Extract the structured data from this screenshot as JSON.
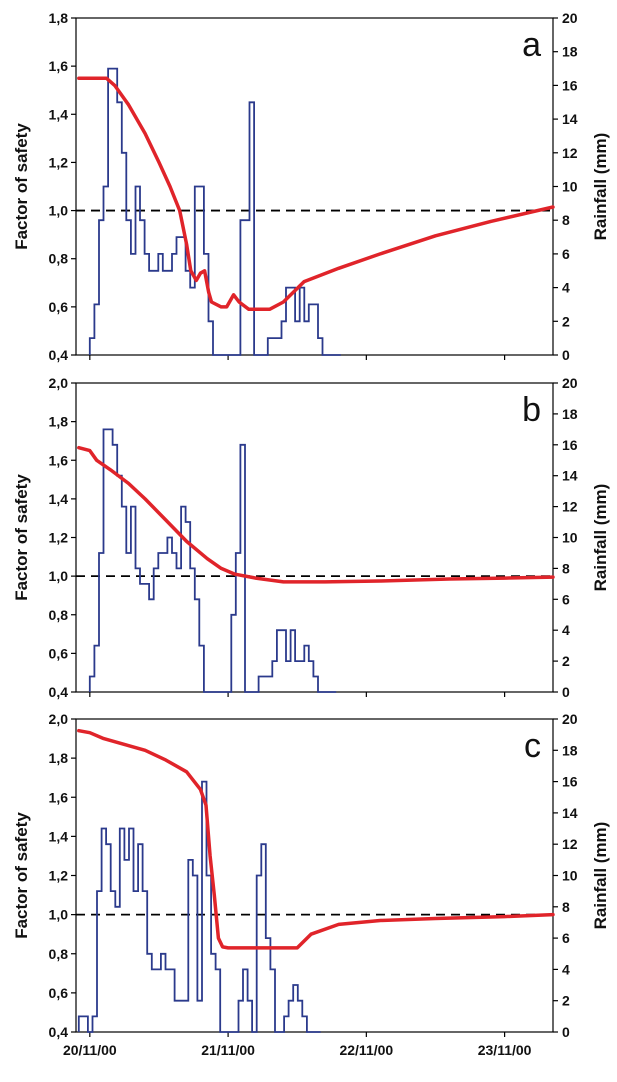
{
  "colors": {
    "factor_of_safety": "#e0242a",
    "rainfall": "#2b3a8c",
    "reference": "#000000"
  },
  "chart_data": [
    {
      "type": "line",
      "panel_label": "a",
      "ylabel": "Factor of safety",
      "y2label": "Rainfall (mm)",
      "ylim": [
        0.4,
        1.8
      ],
      "y2lim": [
        0,
        20
      ],
      "yticks": [
        "0,4",
        "0,6",
        "0,8",
        "1,0",
        "1,2",
        "1,4",
        "1,6",
        "1,8"
      ],
      "y2ticks": [
        "0",
        "2",
        "4",
        "6",
        "8",
        "10",
        "12",
        "14",
        "16",
        "18",
        "20"
      ],
      "xlim": [
        -0.1,
        3.35
      ],
      "xticks": [
        "20/11/00",
        "21/11/00",
        "22/11/00",
        "23/11/00"
      ],
      "show_xtick_labels": false,
      "reference_line": 1.0,
      "series": [
        {
          "name": "",
          "kind": "safety",
          "x": [
            -0.08,
            0.12,
            0.18,
            0.28,
            0.4,
            0.5,
            0.58,
            0.65,
            0.7,
            0.73,
            0.77,
            0.8,
            0.83,
            0.86,
            0.88,
            0.95,
            0.99,
            1.04,
            1.08,
            1.15,
            1.25,
            1.3,
            1.4,
            1.55,
            1.8,
            2.1,
            2.5,
            2.9,
            3.35
          ],
          "y": [
            1.55,
            1.55,
            1.52,
            1.44,
            1.32,
            1.2,
            1.1,
            1.0,
            0.86,
            0.75,
            0.71,
            0.74,
            0.75,
            0.66,
            0.62,
            0.6,
            0.6,
            0.65,
            0.62,
            0.59,
            0.59,
            0.59,
            0.62,
            0.705,
            0.76,
            0.82,
            0.895,
            0.955,
            1.015
          ]
        },
        {
          "name": "",
          "kind": "rainfall",
          "step": 0.033,
          "start": 0,
          "values": [
            1,
            3,
            8,
            10,
            17,
            17,
            15,
            12,
            8,
            6,
            10,
            8,
            6,
            5,
            5,
            6,
            5,
            5,
            6,
            7,
            7,
            5,
            4,
            10,
            10,
            6,
            2,
            0,
            0,
            0,
            0,
            0,
            0,
            8,
            8,
            15,
            0,
            0,
            0,
            1,
            1,
            1,
            2,
            4,
            4,
            2,
            4,
            2,
            3,
            3,
            1,
            0,
            0,
            0,
            0
          ]
        }
      ]
    },
    {
      "type": "line",
      "panel_label": "b",
      "ylabel": "Factor of safety",
      "y2label": "Rainfall (mm)",
      "ylim": [
        0.4,
        2.0
      ],
      "y2lim": [
        0,
        20
      ],
      "yticks": [
        "0,4",
        "0,6",
        "0,8",
        "1,0",
        "1,2",
        "1,4",
        "1,6",
        "1,8",
        "2,0"
      ],
      "y2ticks": [
        "0",
        "2",
        "4",
        "6",
        "8",
        "10",
        "12",
        "14",
        "16",
        "18",
        "20"
      ],
      "xlim": [
        -0.1,
        3.35
      ],
      "xticks": [
        "20/11/00",
        "21/11/00",
        "22/11/00",
        "23/11/00"
      ],
      "show_xtick_labels": false,
      "reference_line": 1.0,
      "series": [
        {
          "name": "",
          "kind": "safety",
          "x": [
            -0.08,
            0.0,
            0.05,
            0.15,
            0.28,
            0.4,
            0.55,
            0.7,
            0.85,
            0.95,
            1.05,
            1.2,
            1.4,
            1.7,
            2.1,
            2.6,
            3.0,
            3.35
          ],
          "y": [
            1.665,
            1.65,
            1.6,
            1.55,
            1.48,
            1.4,
            1.29,
            1.18,
            1.09,
            1.04,
            1.01,
            0.99,
            0.97,
            0.97,
            0.975,
            0.985,
            0.99,
            0.995
          ]
        },
        {
          "name": "",
          "kind": "rainfall",
          "step": 0.033,
          "start": 0,
          "values": [
            1,
            3,
            9,
            17,
            17,
            16,
            14,
            12,
            9,
            12,
            8,
            7,
            7,
            6,
            8,
            9,
            9,
            10,
            9,
            8,
            12,
            11,
            8,
            6,
            3,
            0,
            0,
            0,
            0,
            0,
            0,
            5,
            9,
            16,
            0,
            0,
            0,
            1,
            1,
            1,
            2,
            4,
            4,
            2,
            4,
            2,
            2,
            3,
            2,
            1,
            0,
            0,
            0,
            0
          ]
        }
      ]
    },
    {
      "type": "line",
      "panel_label": "c",
      "ylabel": "Factor of safety",
      "y2label": "Rainfall (mm)",
      "ylim": [
        0.4,
        2.0
      ],
      "y2lim": [
        0,
        20
      ],
      "yticks": [
        "0,4",
        "0,6",
        "0,8",
        "1,0",
        "1,2",
        "1,4",
        "1,6",
        "1,8",
        "2,0"
      ],
      "y2ticks": [
        "0",
        "2",
        "4",
        "6",
        "8",
        "10",
        "12",
        "14",
        "16",
        "18",
        "20"
      ],
      "xlim": [
        -0.1,
        3.35
      ],
      "xticks": [
        "20/11/00",
        "21/11/00",
        "22/11/00",
        "23/11/00"
      ],
      "show_xtick_labels": true,
      "reference_line": 1.0,
      "series": [
        {
          "name": "",
          "kind": "safety",
          "x": [
            -0.08,
            0.0,
            0.1,
            0.25,
            0.4,
            0.55,
            0.7,
            0.8,
            0.84,
            0.87,
            0.9,
            0.93,
            0.96,
            1.0,
            1.2,
            1.4,
            1.5,
            1.6,
            1.8,
            2.1,
            2.5,
            3.0,
            3.35
          ],
          "y": [
            1.94,
            1.93,
            1.9,
            1.87,
            1.84,
            1.79,
            1.73,
            1.64,
            1.56,
            1.3,
            1.1,
            0.88,
            0.835,
            0.83,
            0.83,
            0.83,
            0.83,
            0.9,
            0.95,
            0.97,
            0.98,
            0.99,
            1.0
          ],
          "note": ""
        },
        {
          "name": "",
          "kind": "rainfall",
          "step": 0.033,
          "start": -0.08,
          "values": [
            1,
            1,
            0,
            1,
            9,
            13,
            12,
            9,
            8,
            13,
            11,
            13,
            9,
            12,
            9,
            5,
            4,
            4,
            5,
            4,
            4,
            2,
            2,
            2,
            11,
            10,
            2,
            16,
            10,
            5,
            4,
            0,
            0,
            0,
            0,
            2,
            4,
            2,
            0,
            10,
            12,
            6,
            4,
            0,
            0,
            1,
            2,
            3,
            2,
            1,
            0,
            0,
            0
          ]
        }
      ]
    }
  ]
}
